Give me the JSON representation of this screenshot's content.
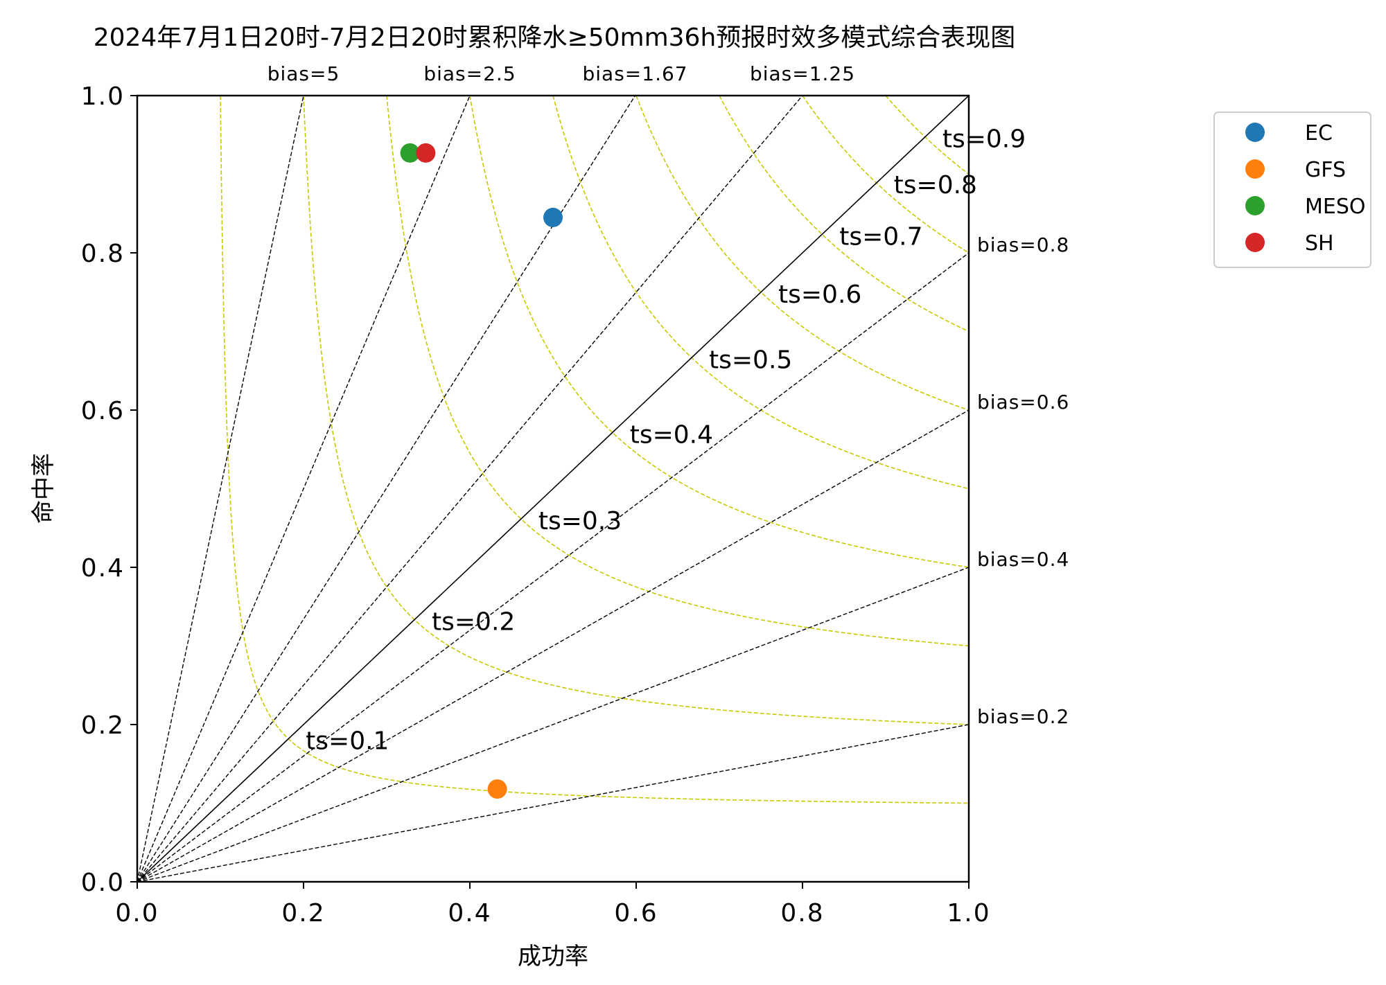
{
  "chart_data": {
    "type": "scatter",
    "title": "2024年7月1日20时-7月2日20时累积降水≥50mm36h预报时效多模式综合表现图",
    "xlabel": "成功率",
    "ylabel": "命中率",
    "xlim": [
      0,
      1
    ],
    "ylim": [
      0,
      1
    ],
    "x_ticks": [
      "0.0",
      "0.2",
      "0.4",
      "0.6",
      "0.8",
      "1.0"
    ],
    "y_ticks": [
      "0.0",
      "0.2",
      "0.4",
      "0.6",
      "0.8",
      "1.0"
    ],
    "grid": false,
    "legend_position": "outside-right",
    "ts_lines": [
      0.1,
      0.2,
      0.3,
      0.4,
      0.5,
      0.6,
      0.7,
      0.8,
      0.9
    ],
    "ts_labels": [
      "ts=0.1",
      "ts=0.2",
      "ts=0.3",
      "ts=0.4",
      "ts=0.5",
      "ts=0.6",
      "ts=0.7",
      "ts=0.8",
      "ts=0.9"
    ],
    "bias_lines": [
      5,
      2.5,
      1.67,
      1.25,
      1,
      0.8,
      0.6,
      0.4,
      0.2
    ],
    "bias_labels_top": [
      "bias=5",
      "bias=2.5",
      "bias=1.67",
      "bias=1.25"
    ],
    "bias_labels_right": [
      "bias=0.8",
      "bias=0.6",
      "bias=0.4",
      "bias=0.2"
    ],
    "colors": {
      "ts_curve": "#c8c800",
      "bias_line": "#000000"
    },
    "series": [
      {
        "name": "EC",
        "x": 0.5,
        "y": 0.845,
        "color": "#1f77b4"
      },
      {
        "name": "GFS",
        "x": 0.433,
        "y": 0.118,
        "color": "#ff7f0e"
      },
      {
        "name": "MESO",
        "x": 0.328,
        "y": 0.927,
        "color": "#2ca02c"
      },
      {
        "name": "SH",
        "x": 0.347,
        "y": 0.927,
        "color": "#d62728"
      }
    ]
  }
}
